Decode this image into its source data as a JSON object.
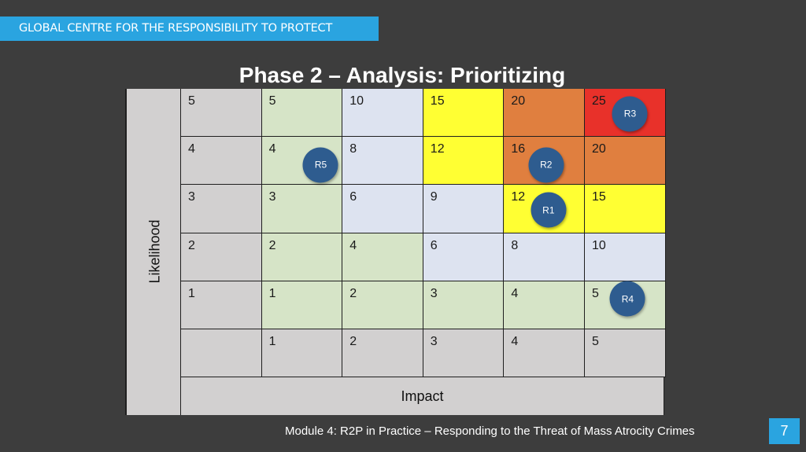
{
  "header": {
    "organization": "GLOBAL CENTRE FOR THE RESPONSIBILITY TO PROTECT"
  },
  "title": "Phase 2 – Analysis: Prioritizing",
  "matrix": {
    "y_axis_label": "Likelihood",
    "x_axis_label": "Impact",
    "colors": {
      "low": "#d6e4c7",
      "medium": "#dde3f0",
      "high": "#ffff33",
      "very_high": "#e07f3f",
      "extreme": "#e8312a",
      "axis": "#d2d0d0"
    },
    "rows": [
      {
        "likelihood": "5",
        "cells": [
          {
            "value": "5",
            "level": "low"
          },
          {
            "value": "10",
            "level": "medium"
          },
          {
            "value": "15",
            "level": "high"
          },
          {
            "value": "20",
            "level": "very_high"
          },
          {
            "value": "25",
            "level": "extreme"
          }
        ]
      },
      {
        "likelihood": "4",
        "cells": [
          {
            "value": "4",
            "level": "low"
          },
          {
            "value": "8",
            "level": "medium"
          },
          {
            "value": "12",
            "level": "high"
          },
          {
            "value": "16",
            "level": "very_high"
          },
          {
            "value": "20",
            "level": "very_high"
          }
        ]
      },
      {
        "likelihood": "3",
        "cells": [
          {
            "value": "3",
            "level": "low"
          },
          {
            "value": "6",
            "level": "medium"
          },
          {
            "value": "9",
            "level": "medium"
          },
          {
            "value": "12",
            "level": "high"
          },
          {
            "value": "15",
            "level": "high"
          }
        ]
      },
      {
        "likelihood": "2",
        "cells": [
          {
            "value": "2",
            "level": "low"
          },
          {
            "value": "4",
            "level": "low"
          },
          {
            "value": "6",
            "level": "medium"
          },
          {
            "value": "8",
            "level": "medium"
          },
          {
            "value": "10",
            "level": "medium"
          }
        ]
      },
      {
        "likelihood": "1",
        "cells": [
          {
            "value": "1",
            "level": "low"
          },
          {
            "value": "2",
            "level": "low"
          },
          {
            "value": "3",
            "level": "low"
          },
          {
            "value": "4",
            "level": "low"
          },
          {
            "value": "5",
            "level": "low"
          }
        ]
      }
    ],
    "impact_values": [
      "1",
      "2",
      "3",
      "4",
      "5"
    ],
    "risks": [
      {
        "label": "R3",
        "likelihood": 5,
        "impact": 5
      },
      {
        "label": "R5",
        "likelihood": 4,
        "impact": 1
      },
      {
        "label": "R2",
        "likelihood": 4,
        "impact": 4
      },
      {
        "label": "R1",
        "likelihood": 3,
        "impact": 4
      },
      {
        "label": "R4",
        "likelihood": 1,
        "impact": 5
      }
    ]
  },
  "footer": {
    "module_text": "Module 4: R2P in Practice – Responding to the Threat of Mass Atrocity Crimes",
    "page_number": "7"
  }
}
